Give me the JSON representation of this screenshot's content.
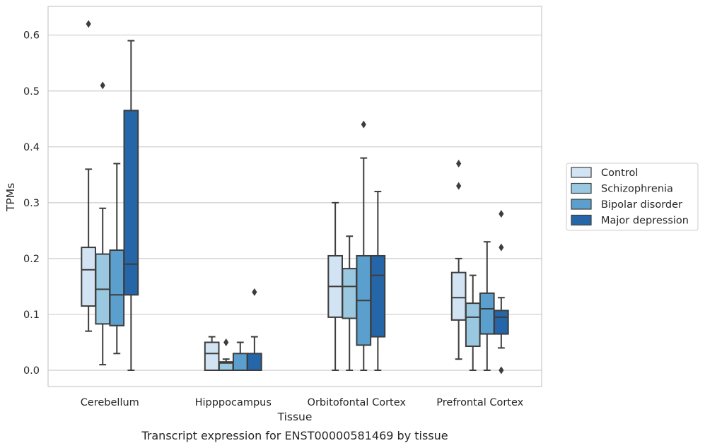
{
  "chart_data": {
    "type": "box",
    "xlabel": "Tissue",
    "ylabel": "TPMs",
    "caption": "Transcript expression for ENST00000581469 by tissue",
    "ylim": [
      -0.03,
      0.655
    ],
    "yticks": [
      0.0,
      0.1,
      0.2,
      0.3,
      0.4,
      0.5,
      0.6
    ],
    "ytick_labels": [
      "0.0",
      "0.1",
      "0.2",
      "0.3",
      "0.4",
      "0.5",
      "0.6"
    ],
    "grid": "horizontal",
    "legend_position": "right",
    "categories": [
      "Cerebellum",
      "Hipppocampus",
      "Orbitofontal Cortex",
      "Prefrontal Cortex"
    ],
    "series": [
      {
        "name": "Control",
        "color": "#d2e3f3",
        "boxes": [
          {
            "whislo": 0.07,
            "q1": 0.115,
            "med": 0.18,
            "q3": 0.22,
            "whishi": 0.36,
            "fliers": [
              0.62
            ]
          },
          {
            "whislo": 0.0,
            "q1": 0.0,
            "med": 0.03,
            "q3": 0.05,
            "whishi": 0.06,
            "fliers": []
          },
          {
            "whislo": 0.0,
            "q1": 0.095,
            "med": 0.15,
            "q3": 0.205,
            "whishi": 0.3,
            "fliers": []
          },
          {
            "whislo": 0.02,
            "q1": 0.09,
            "med": 0.13,
            "q3": 0.175,
            "whishi": 0.2,
            "fliers": [
              0.33,
              0.37
            ]
          }
        ]
      },
      {
        "name": "Schizophrenia",
        "color": "#9ac8e0",
        "boxes": [
          {
            "whislo": 0.01,
            "q1": 0.083,
            "med": 0.145,
            "q3": 0.208,
            "whishi": 0.29,
            "fliers": [
              0.51
            ]
          },
          {
            "whislo": 0.0,
            "q1": 0.0,
            "med": 0.013,
            "q3": 0.015,
            "whishi": 0.02,
            "fliers": [
              0.05
            ]
          },
          {
            "whislo": 0.0,
            "q1": 0.093,
            "med": 0.15,
            "q3": 0.182,
            "whishi": 0.24,
            "fliers": []
          },
          {
            "whislo": 0.0,
            "q1": 0.043,
            "med": 0.095,
            "q3": 0.12,
            "whishi": 0.17,
            "fliers": []
          }
        ]
      },
      {
        "name": "Bipolar disorder",
        "color": "#5a9fcd",
        "boxes": [
          {
            "whislo": 0.03,
            "q1": 0.08,
            "med": 0.135,
            "q3": 0.215,
            "whishi": 0.37,
            "fliers": []
          },
          {
            "whislo": 0.0,
            "q1": 0.0,
            "med": 0.0,
            "q3": 0.03,
            "whishi": 0.05,
            "fliers": []
          },
          {
            "whislo": 0.0,
            "q1": 0.045,
            "med": 0.125,
            "q3": 0.205,
            "whishi": 0.38,
            "fliers": [
              0.44
            ]
          },
          {
            "whislo": 0.0,
            "q1": 0.065,
            "med": 0.11,
            "q3": 0.138,
            "whishi": 0.23,
            "fliers": []
          }
        ]
      },
      {
        "name": "Major depression",
        "color": "#2566a9",
        "boxes": [
          {
            "whislo": 0.0,
            "q1": 0.135,
            "med": 0.19,
            "q3": 0.465,
            "whishi": 0.59,
            "fliers": []
          },
          {
            "whislo": 0.0,
            "q1": 0.0,
            "med": 0.0,
            "q3": 0.03,
            "whishi": 0.06,
            "fliers": [
              0.14
            ]
          },
          {
            "whislo": 0.0,
            "q1": 0.06,
            "med": 0.17,
            "q3": 0.205,
            "whishi": 0.32,
            "fliers": []
          },
          {
            "whislo": 0.04,
            "q1": 0.065,
            "med": 0.095,
            "q3": 0.107,
            "whishi": 0.13,
            "fliers": [
              0.0,
              0.22,
              0.28
            ]
          }
        ]
      }
    ]
  }
}
